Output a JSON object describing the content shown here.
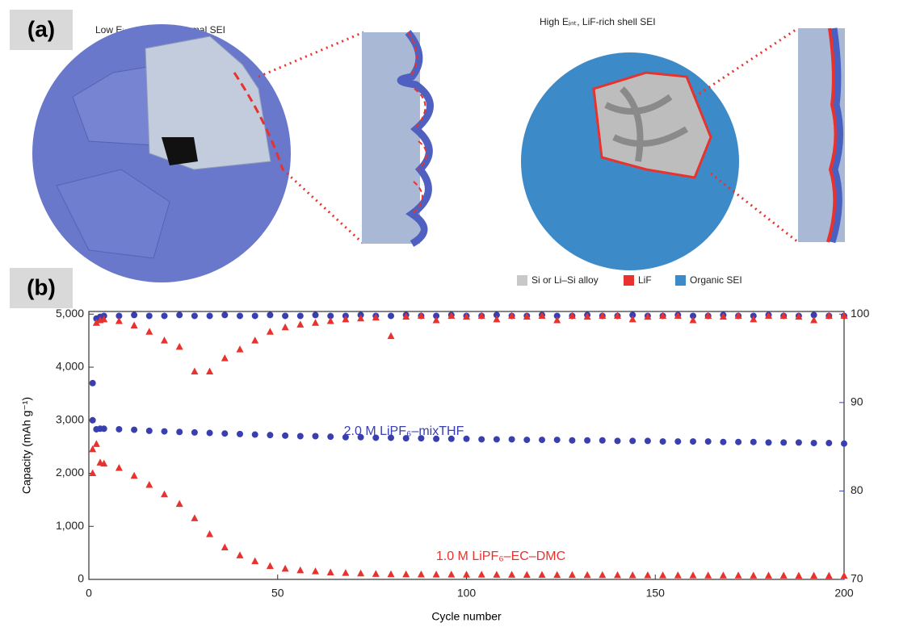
{
  "figure": {
    "panel_a": {
      "label": "(a)",
      "left_caption": "Low Eᵢₙₜ, mixed conformal SEI",
      "right_caption": "High Eᵢₙₜ, LiF-rich shell SEI",
      "legend": [
        {
          "name": "Si or Li–Si alloy",
          "color": "#c8c8c8"
        },
        {
          "name": "LiF",
          "color": "#e8322e"
        },
        {
          "name": "Organic SEI",
          "color": "#3d8ac9"
        }
      ]
    },
    "panel_b": {
      "label": "(b)"
    }
  },
  "chart_data": {
    "type": "scatter",
    "xlabel": "Cycle number",
    "ylabel": "Capacity (mAh g⁻¹)",
    "xlim": [
      0,
      200
    ],
    "xticks": [
      0,
      50,
      100,
      150,
      200
    ],
    "ylim": [
      0,
      5050
    ],
    "yticks": [
      0,
      {
        "value": 1000,
        "label": "1,000"
      },
      {
        "value": 2000,
        "label": "2,000"
      },
      {
        "value": 3000,
        "label": "3,000"
      },
      {
        "value": 4000,
        "label": "4,000"
      },
      {
        "value": 5000,
        "label": "5,000"
      }
    ],
    "y2lim": [
      70,
      100.3
    ],
    "y2ticks": [
      70,
      80,
      90,
      100
    ],
    "y2color": "#3a3fb0",
    "annotations": [
      {
        "text": "2.0 M LiPF₆–mixTHF",
        "color": "#3a3fb0"
      },
      {
        "text": "1.0 M LiPF₆–EC–DMC",
        "color": "#e8322e"
      }
    ],
    "x": [
      1,
      2,
      3,
      4,
      8,
      12,
      16,
      20,
      24,
      28,
      32,
      36,
      40,
      44,
      48,
      52,
      56,
      60,
      64,
      68,
      72,
      76,
      80,
      84,
      88,
      92,
      96,
      100,
      104,
      108,
      112,
      116,
      120,
      124,
      128,
      132,
      136,
      140,
      144,
      148,
      152,
      156,
      160,
      164,
      168,
      172,
      176,
      180,
      184,
      188,
      192,
      196,
      200
    ],
    "series": [
      {
        "color": "#3a3fb0",
        "marker": "circle",
        "values": [
          3700,
          2830,
          2840,
          2840,
          2830,
          2820,
          2800,
          2790,
          2780,
          2770,
          2760,
          2750,
          2740,
          2730,
          2720,
          2710,
          2700,
          2700,
          2690,
          2680,
          2680,
          2670,
          2670,
          2660,
          2660,
          2650,
          2650,
          2650,
          2640,
          2640,
          2640,
          2630,
          2630,
          2630,
          2620,
          2620,
          2620,
          2610,
          2610,
          2610,
          2600,
          2600,
          2600,
          2600,
          2590,
          2590,
          2590,
          2580,
          2580,
          2580,
          2570,
          2570,
          2560
        ]
      },
      {
        "color": "#e8322e",
        "marker": "triangle",
        "values": [
          2450,
          2550,
          2200,
          2180,
          2100,
          1950,
          1780,
          1600,
          1420,
          1150,
          850,
          600,
          450,
          340,
          250,
          200,
          170,
          150,
          130,
          120,
          110,
          100,
          95,
          93,
          92,
          90,
          89,
          88,
          87,
          86,
          85,
          84,
          83,
          82,
          81,
          80,
          79,
          78,
          77,
          76,
          75,
          74,
          74,
          73,
          72,
          72,
          71,
          70,
          70,
          69,
          68,
          67,
          66
        ]
      },
      {
        "color": "#3a3fb0",
        "marker": "circle",
        "axis": "y2",
        "values": [
          88,
          99.5,
          99.7,
          99.8,
          99.8,
          99.9,
          99.8,
          99.8,
          99.9,
          99.8,
          99.8,
          99.9,
          99.8,
          99.8,
          99.9,
          99.8,
          99.8,
          99.9,
          99.8,
          99.8,
          99.9,
          99.8,
          99.8,
          99.9,
          99.8,
          99.8,
          99.9,
          99.8,
          99.8,
          99.9,
          99.8,
          99.8,
          99.9,
          99.8,
          99.8,
          99.9,
          99.8,
          99.8,
          99.9,
          99.8,
          99.8,
          99.9,
          99.8,
          99.8,
          99.9,
          99.8,
          99.8,
          99.9,
          99.8,
          99.8,
          99.9,
          99.8,
          99.8
        ]
      },
      {
        "color": "#e8322e",
        "marker": "triangle",
        "axis": "y2",
        "values": [
          82,
          99,
          99.3,
          99.4,
          99.2,
          98.7,
          98,
          97,
          96.3,
          93.5,
          93.5,
          95,
          96,
          97,
          98,
          98.5,
          98.8,
          99,
          99.2,
          99.4,
          99.5,
          99.6,
          97.5,
          99.7,
          99.8,
          99.3,
          99.8,
          99.7,
          99.8,
          99.4,
          99.8,
          99.7,
          99.8,
          99.3,
          99.8,
          99.7,
          99.8,
          99.8,
          99.4,
          99.7,
          99.8,
          99.8,
          99.3,
          99.8,
          99.7,
          99.8,
          99.4,
          99.8,
          99.8,
          99.7,
          99.3,
          99.8,
          99.8
        ]
      }
    ]
  }
}
